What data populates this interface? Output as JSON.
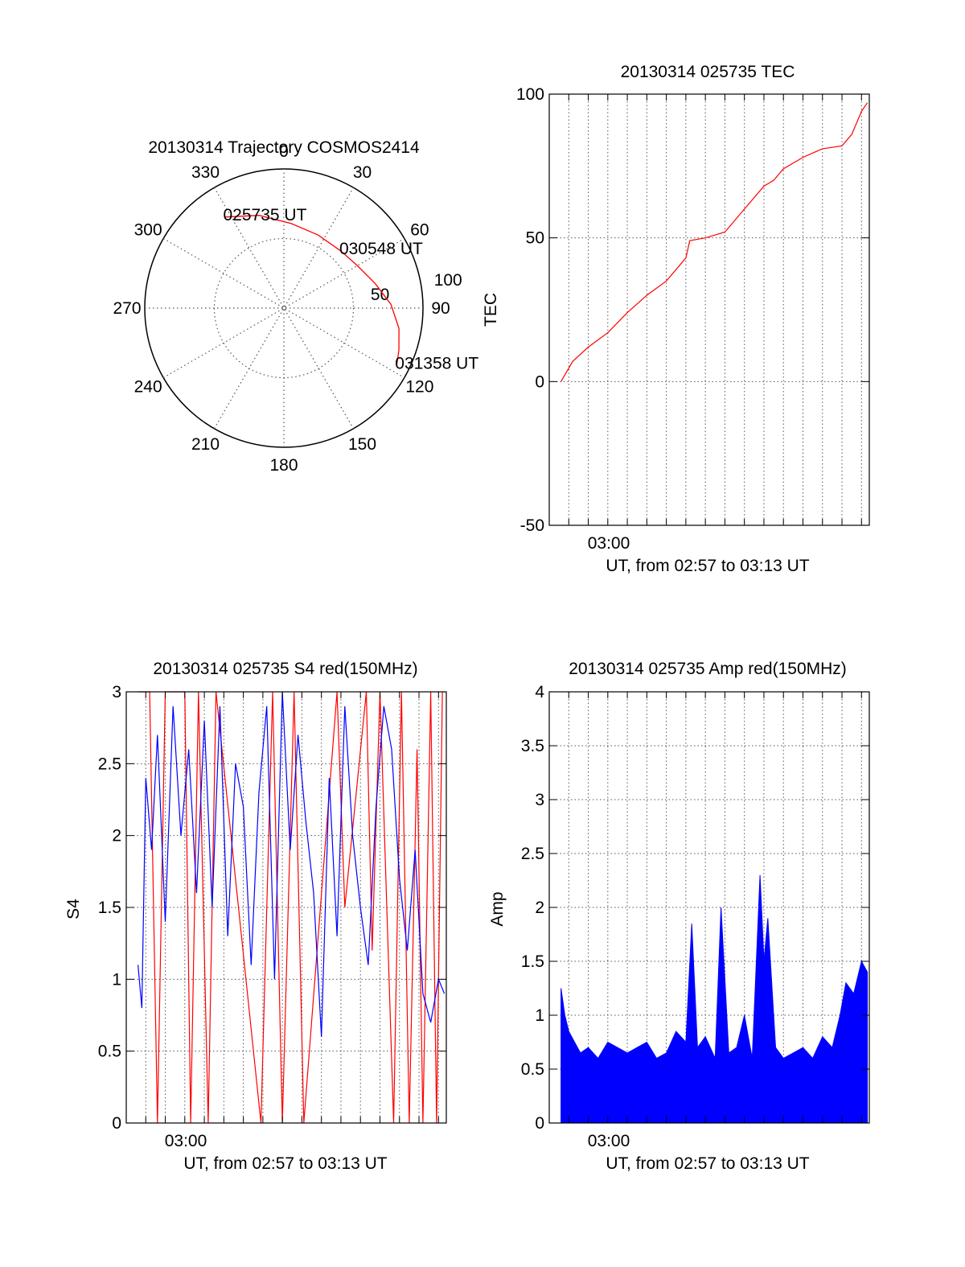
{
  "colors": {
    "trace_red": "#ff0000",
    "trace_blue": "#0000ff",
    "axis": "#000000",
    "grid": "#555555"
  },
  "chart_data": [
    {
      "id": "trajectory",
      "type": "scatter",
      "projection": "polar",
      "title": "20130314 Trajectory COSMOS2414",
      "azimuth_labels": [
        "0",
        "30",
        "60",
        "90",
        "120",
        "150",
        "180",
        "210",
        "240",
        "270",
        "300",
        "330"
      ],
      "radial_labels": [
        "50",
        "100"
      ],
      "radial_max": 100,
      "grid": true,
      "series": [
        {
          "color": "#ff0000",
          "points_az_r": [
            [
              327,
              78
            ],
            [
              345,
              69
            ],
            [
              5,
              61
            ],
            [
              25,
              58
            ],
            [
              45,
              58
            ],
            [
              60,
              61
            ],
            [
              75,
              68
            ],
            [
              88,
              77
            ],
            [
              100,
              84
            ],
            [
              110,
              88
            ],
            [
              117,
              91
            ]
          ]
        }
      ],
      "annotations": [
        {
          "text": "025735 UT",
          "az": 327,
          "r": 78
        },
        {
          "text": "030548 UT",
          "az": 45,
          "r": 58
        },
        {
          "text": "031358 UT",
          "az": 117,
          "r": 91
        }
      ]
    },
    {
      "id": "tec",
      "type": "line",
      "title": "20130314 025735 TEC",
      "ylabel": "TEC",
      "xlabel": "UT, from 02:57 to 03:13 UT",
      "x_tick_label": "03:00",
      "xlim_minutes": [
        0,
        16.4
      ],
      "ylim": [
        -50,
        100
      ],
      "yticks": [
        "100",
        "50",
        "0",
        "-50"
      ],
      "yticks_values": [
        100,
        50,
        0,
        -50
      ],
      "grid": true,
      "series": [
        {
          "color": "#ff0000",
          "x_minutes": [
            0.6,
            1.2,
            2,
            3,
            4,
            5,
            6,
            7,
            7.2,
            8,
            9,
            10,
            11,
            11.5,
            12,
            13,
            14,
            15,
            15.5,
            16,
            16.3
          ],
          "values": [
            0,
            7,
            12,
            17,
            24,
            30,
            35,
            43,
            49,
            50,
            52,
            60,
            68,
            70,
            74,
            78,
            81,
            82,
            86,
            94,
            97
          ]
        }
      ]
    },
    {
      "id": "s4",
      "type": "line",
      "title": "20130314 025735 S4 red(150MHz)",
      "ylabel": "S4",
      "xlabel": "UT, from 02:57 to 03:13 UT",
      "x_tick_label": "03:00",
      "xlim_minutes": [
        0,
        16.4
      ],
      "ylim": [
        0,
        3
      ],
      "yticks": [
        "3",
        "2.5",
        "2",
        "1.5",
        "1",
        "0.5",
        "0"
      ],
      "yticks_values": [
        3,
        2.5,
        2,
        1.5,
        1,
        0.5,
        0
      ],
      "grid": true,
      "series": [
        {
          "color": "#ff0000",
          "x_minutes": [
            0.6,
            0.8,
            1.2,
            1.6,
            2.0,
            2.3,
            3.0,
            3.3,
            3.7,
            4.2,
            4.6,
            6.9,
            7.5,
            8.0,
            8.6,
            9.1,
            10.8,
            11.2,
            12.3,
            12.6,
            13.0,
            13.7,
            14.1,
            14.5,
            14.9,
            15.2,
            15.6,
            15.9,
            16.2
          ],
          "values": [
            3,
            3,
            3,
            0,
            3,
            3,
            3,
            0,
            3,
            0,
            3,
            0,
            3,
            0,
            3,
            0,
            3,
            1.5,
            3,
            1.2,
            3,
            0,
            3,
            0,
            2.6,
            0,
            3,
            0,
            3
          ]
        },
        {
          "color": "#0000ff",
          "x_minutes": [
            0.6,
            0.8,
            1.0,
            1.3,
            1.6,
            2.0,
            2.4,
            2.8,
            3.2,
            3.6,
            4.0,
            4.4,
            4.8,
            5.2,
            5.6,
            6.0,
            6.4,
            6.8,
            7.2,
            7.6,
            8.0,
            8.4,
            8.8,
            9.2,
            9.6,
            10.0,
            10.4,
            10.8,
            11.2,
            11.6,
            12.0,
            12.4,
            12.8,
            13.2,
            13.6,
            14.0,
            14.4,
            14.8,
            15.2,
            15.6,
            16.0,
            16.3
          ],
          "values": [
            1.1,
            0.8,
            2.4,
            1.9,
            2.7,
            1.4,
            2.9,
            2.0,
            2.6,
            1.6,
            2.8,
            1.5,
            2.9,
            1.3,
            2.5,
            2.2,
            1.1,
            2.3,
            2.9,
            1.0,
            3.0,
            1.9,
            2.7,
            2.1,
            1.6,
            0.6,
            2.4,
            1.3,
            2.9,
            2.0,
            1.5,
            1.1,
            2.2,
            2.9,
            2.6,
            1.7,
            1.2,
            1.9,
            0.9,
            0.7,
            1.0,
            0.9
          ]
        }
      ]
    },
    {
      "id": "amp",
      "type": "area",
      "title": "20130314 025735 Amp red(150MHz)",
      "ylabel": "Amp",
      "xlabel": "UT, from 02:57 to 03:13 UT",
      "x_tick_label": "03:00",
      "xlim_minutes": [
        0,
        16.4
      ],
      "ylim": [
        0,
        4
      ],
      "yticks": [
        "4",
        "3.5",
        "3",
        "2.5",
        "2",
        "1.5",
        "1",
        "0.5",
        "0"
      ],
      "yticks_values": [
        4,
        3.5,
        3,
        2.5,
        2,
        1.5,
        1,
        0.5,
        0
      ],
      "grid": true,
      "series": [
        {
          "color": "#0000ff",
          "x_minutes": [
            0.6,
            0.8,
            1.0,
            1.3,
            1.6,
            2.0,
            2.5,
            3.0,
            3.5,
            4.0,
            4.5,
            5.0,
            5.5,
            6.0,
            6.5,
            7.0,
            7.3,
            7.6,
            8.0,
            8.5,
            8.8,
            9.2,
            9.6,
            10.0,
            10.2,
            10.4,
            10.8,
            11.0,
            11.2,
            11.6,
            12.0,
            12.5,
            13.0,
            13.5,
            14.0,
            14.5,
            14.9,
            15.2,
            15.6,
            16.0,
            16.3
          ],
          "values": [
            1.25,
            1.0,
            0.85,
            0.75,
            0.65,
            0.7,
            0.6,
            0.75,
            0.7,
            0.65,
            0.7,
            0.75,
            0.6,
            0.65,
            0.85,
            0.75,
            1.85,
            0.7,
            0.8,
            0.6,
            2.0,
            0.65,
            0.7,
            1.0,
            0.8,
            0.6,
            2.3,
            1.5,
            1.9,
            0.7,
            0.6,
            0.65,
            0.7,
            0.6,
            0.8,
            0.7,
            1.0,
            1.3,
            1.2,
            1.5,
            1.4
          ]
        }
      ]
    }
  ]
}
